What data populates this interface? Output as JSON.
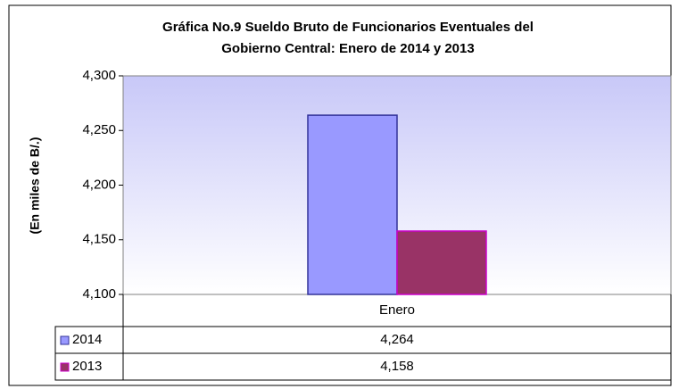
{
  "chart_data": {
    "type": "bar",
    "title": [
      "Gráfica No.9 Sueldo Bruto de Funcionarios Eventuales del",
      "Gobierno Central: Enero de 2014 y 2013"
    ],
    "y_label": "(En miles de B/.)",
    "categories": [
      "Enero"
    ],
    "series": [
      {
        "name": "2014",
        "color": "#9999ff",
        "border": "#333399",
        "values": [
          4264
        ],
        "value_labels": [
          "4,264"
        ]
      },
      {
        "name": "2013",
        "color": "#993366",
        "border": "#cc00cc",
        "values": [
          4158
        ],
        "value_labels": [
          "4,158"
        ]
      }
    ],
    "ylim": [
      4100,
      4300
    ],
    "yticks": [
      {
        "value": 4100,
        "label": "4,100"
      },
      {
        "value": 4150,
        "label": "4,150"
      },
      {
        "value": 4200,
        "label": "4,200"
      },
      {
        "value": 4250,
        "label": "4,250"
      },
      {
        "value": 4300,
        "label": "4,300"
      }
    ],
    "data_table": true
  }
}
